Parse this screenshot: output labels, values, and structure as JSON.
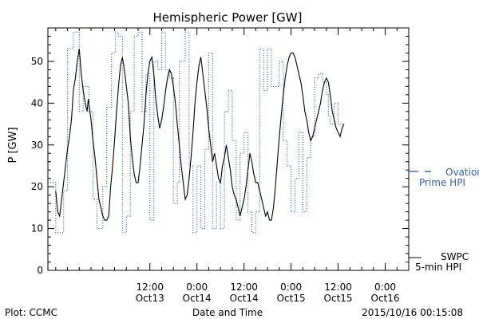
{
  "chart_data": {
    "type": "line",
    "title": "Hemispheric Power [GW]",
    "xlabel": "Date and Time",
    "ylabel": "P [GW]",
    "xlim": [
      -14,
      78
    ],
    "ylim": [
      0,
      58
    ],
    "grid": false,
    "x_ticks": [
      {
        "x": 12,
        "time": "12:00",
        "date": "Oct13"
      },
      {
        "x": 24,
        "time": "0:00",
        "date": "Oct14"
      },
      {
        "x": 36,
        "time": "12:00",
        "date": "Oct14"
      },
      {
        "x": 48,
        "time": "0:00",
        "date": "Oct15"
      },
      {
        "x": 60,
        "time": "12:00",
        "date": "Oct15"
      },
      {
        "x": 72,
        "time": "0:00",
        "date": "Oct16"
      }
    ],
    "y_ticks": [
      0,
      10,
      20,
      30,
      40,
      50
    ],
    "colors": {
      "swpc": "#000000",
      "ovation": "#3060c0"
    },
    "legend": {
      "placement": "right",
      "ovation_line1": "Ovation",
      "ovation_line2": "Prime HPI",
      "swpc_line1": "SWPC",
      "swpc_line2": "5-min HPI"
    },
    "series": [
      {
        "name": "SWPC 5-min HPI",
        "style": "solid",
        "color": "#000000",
        "points": [
          [
            -12,
            19
          ],
          [
            -11.5,
            14
          ],
          [
            -11,
            13
          ],
          [
            -10.5,
            17
          ],
          [
            -10,
            21
          ],
          [
            -9.5,
            25
          ],
          [
            -9,
            29
          ],
          [
            -8.5,
            32
          ],
          [
            -8,
            36
          ],
          [
            -7.5,
            43
          ],
          [
            -7,
            46
          ],
          [
            -6.5,
            50
          ],
          [
            -6,
            53
          ],
          [
            -5.5,
            47
          ],
          [
            -5,
            43
          ],
          [
            -4.5,
            40
          ],
          [
            -4,
            38
          ],
          [
            -3.7,
            41
          ],
          [
            -3.3,
            38
          ],
          [
            -3,
            36
          ],
          [
            -2.5,
            31
          ],
          [
            -2,
            27
          ],
          [
            -1.5,
            22
          ],
          [
            -1,
            17
          ],
          [
            -0.5,
            15
          ],
          [
            0,
            13
          ],
          [
            0.5,
            12
          ],
          [
            1,
            12
          ],
          [
            1.5,
            13
          ],
          [
            2,
            20
          ],
          [
            2.5,
            25
          ],
          [
            3,
            31
          ],
          [
            3.5,
            38
          ],
          [
            4,
            44
          ],
          [
            4.5,
            49
          ],
          [
            5,
            51
          ],
          [
            5.5,
            48
          ],
          [
            6,
            44
          ],
          [
            6.5,
            40
          ],
          [
            7,
            32
          ],
          [
            7.5,
            27
          ],
          [
            8,
            23
          ],
          [
            8.5,
            21
          ],
          [
            9,
            21
          ],
          [
            9.5,
            25
          ],
          [
            10,
            30
          ],
          [
            10.5,
            35
          ],
          [
            11,
            42
          ],
          [
            11.5,
            47
          ],
          [
            12,
            50
          ],
          [
            12.5,
            51
          ],
          [
            13,
            47
          ],
          [
            13.5,
            41
          ],
          [
            14,
            37
          ],
          [
            14.5,
            34
          ],
          [
            15,
            36
          ],
          [
            15.5,
            39
          ],
          [
            16,
            43
          ],
          [
            16.5,
            46
          ],
          [
            17,
            48
          ],
          [
            17.5,
            47
          ],
          [
            18,
            44
          ],
          [
            18.5,
            40
          ],
          [
            19,
            35
          ],
          [
            19.5,
            30
          ],
          [
            20,
            25
          ],
          [
            20.5,
            21
          ],
          [
            21,
            17
          ],
          [
            21.5,
            18
          ],
          [
            22,
            22
          ],
          [
            22.5,
            27
          ],
          [
            23,
            33
          ],
          [
            23.5,
            40
          ],
          [
            24,
            45
          ],
          [
            24.5,
            49
          ],
          [
            25,
            51
          ],
          [
            25.5,
            47
          ],
          [
            26,
            43
          ],
          [
            26.5,
            39
          ],
          [
            27,
            34
          ],
          [
            27.5,
            30
          ],
          [
            28,
            26
          ],
          [
            28.5,
            28
          ],
          [
            29,
            25
          ],
          [
            29.5,
            22
          ],
          [
            30,
            21
          ],
          [
            30.5,
            25
          ],
          [
            31,
            27
          ],
          [
            31.5,
            30
          ],
          [
            32,
            27
          ],
          [
            32.5,
            24
          ],
          [
            33,
            20
          ],
          [
            33.5,
            18
          ],
          [
            34,
            17
          ],
          [
            34.5,
            15
          ],
          [
            35,
            13
          ],
          [
            35.5,
            15
          ],
          [
            36,
            17
          ],
          [
            36.5,
            20
          ],
          [
            37,
            24
          ],
          [
            37.5,
            28
          ],
          [
            38,
            26
          ],
          [
            38.5,
            23
          ],
          [
            39,
            21
          ],
          [
            39.5,
            21
          ],
          [
            40,
            19
          ],
          [
            40.5,
            17
          ],
          [
            41,
            15
          ],
          [
            41.5,
            13
          ],
          [
            42,
            14
          ],
          [
            42.5,
            12
          ],
          [
            43,
            12
          ],
          [
            43.5,
            15
          ],
          [
            44,
            20
          ],
          [
            44.5,
            26
          ],
          [
            45,
            32
          ],
          [
            45.5,
            37
          ],
          [
            46,
            42
          ],
          [
            46.5,
            46
          ],
          [
            47,
            49
          ],
          [
            47.5,
            51
          ],
          [
            48,
            52
          ],
          [
            48.5,
            52
          ],
          [
            49,
            51
          ],
          [
            49.5,
            49
          ],
          [
            50,
            47
          ],
          [
            50.5,
            45
          ],
          [
            51,
            42
          ],
          [
            51.5,
            38
          ],
          [
            52,
            36
          ],
          [
            52.5,
            33
          ],
          [
            53,
            31
          ],
          [
            53.5,
            32
          ],
          [
            54,
            34
          ],
          [
            54.5,
            36
          ],
          [
            55,
            38
          ],
          [
            55.5,
            40
          ],
          [
            56,
            43
          ],
          [
            56.5,
            45
          ],
          [
            57,
            46
          ],
          [
            57.5,
            45
          ],
          [
            58,
            42
          ],
          [
            58.5,
            38
          ],
          [
            59,
            36
          ],
          [
            59.5,
            34
          ],
          [
            60,
            33
          ],
          [
            60.5,
            32
          ],
          [
            61,
            34
          ],
          [
            61.5,
            35
          ]
        ]
      },
      {
        "name": "Ovation Prime HPI",
        "style": "dotted-step",
        "color": "#3060c0",
        "points": [
          [
            -14,
            21
          ],
          [
            -12,
            9
          ],
          [
            -10,
            19
          ],
          [
            -9,
            53
          ],
          [
            -7.5,
            57
          ],
          [
            -6,
            38
          ],
          [
            -5,
            44
          ],
          [
            -3.5,
            38
          ],
          [
            -2.5,
            17
          ],
          [
            -1.5,
            10
          ],
          [
            0,
            20
          ],
          [
            1,
            39
          ],
          [
            2.2,
            52
          ],
          [
            3.2,
            57
          ],
          [
            4,
            56
          ],
          [
            5,
            9
          ],
          [
            6,
            13
          ],
          [
            7,
            38
          ],
          [
            8,
            56
          ],
          [
            9,
            57
          ],
          [
            10,
            38
          ],
          [
            11,
            47
          ],
          [
            12,
            12
          ],
          [
            13,
            50
          ],
          [
            14,
            48
          ],
          [
            15,
            57
          ],
          [
            16,
            48
          ],
          [
            17,
            46
          ],
          [
            18,
            16
          ],
          [
            19,
            21
          ],
          [
            19.5,
            50
          ],
          [
            20,
            50
          ],
          [
            21,
            57
          ],
          [
            22,
            25
          ],
          [
            23,
            9
          ],
          [
            24,
            25
          ],
          [
            25,
            10
          ],
          [
            26,
            29
          ],
          [
            27,
            52
          ],
          [
            28,
            10
          ],
          [
            29,
            21
          ],
          [
            30,
            10
          ],
          [
            31,
            38
          ],
          [
            32,
            43
          ],
          [
            33,
            31
          ],
          [
            34,
            12
          ],
          [
            35,
            28
          ],
          [
            36,
            33
          ],
          [
            37,
            14
          ],
          [
            38,
            9
          ],
          [
            39,
            14
          ],
          [
            40,
            53
          ],
          [
            41,
            43
          ],
          [
            42,
            53
          ],
          [
            43,
            44
          ],
          [
            44,
            44
          ],
          [
            45,
            50
          ],
          [
            46,
            31
          ],
          [
            47,
            25
          ],
          [
            48,
            14
          ],
          [
            49,
            22
          ],
          [
            50,
            33
          ],
          [
            51,
            14
          ],
          [
            52,
            27
          ],
          [
            53,
            32
          ],
          [
            54,
            46
          ],
          [
            55,
            47
          ],
          [
            56,
            45
          ],
          [
            57,
            42
          ],
          [
            57.5,
            37
          ],
          [
            58,
            35
          ],
          [
            59,
            40
          ],
          [
            60,
            35
          ],
          [
            61.5,
            35
          ]
        ]
      }
    ]
  },
  "footer": {
    "plot_credit": "Plot: CCMC",
    "timestamp": "2015/10/16 00:15:08"
  }
}
